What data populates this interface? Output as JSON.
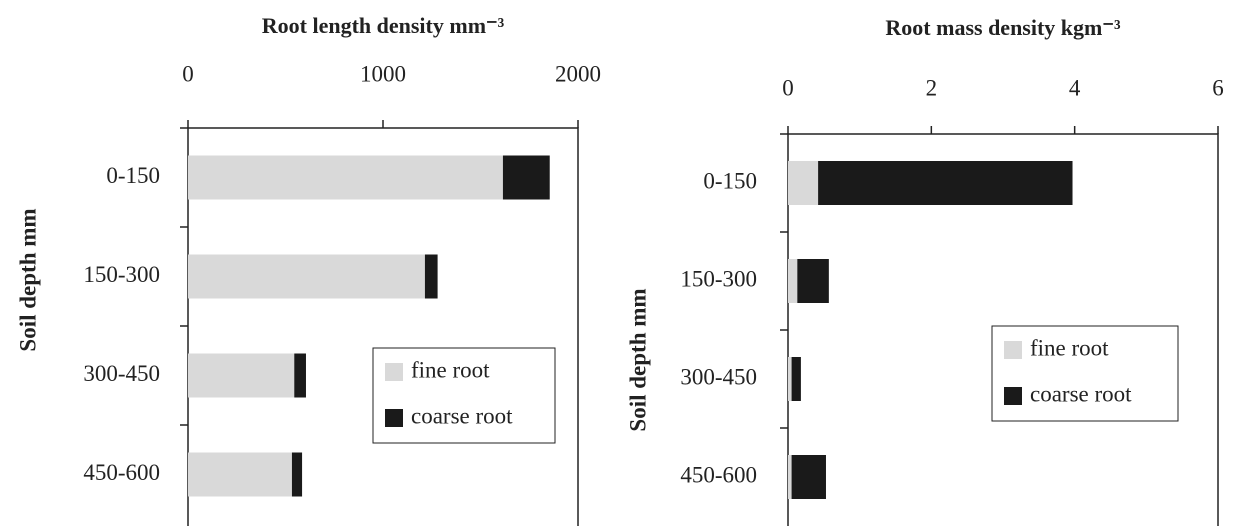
{
  "chart_data": [
    {
      "type": "bar",
      "stacked": true,
      "orientation": "horizontal",
      "title": "Root length density mm⁻³",
      "y_label": "Soil depth mm",
      "categories": [
        "0-150",
        "150-300",
        "300-450",
        "450-600"
      ],
      "series": [
        {
          "name": "fine root",
          "color": "#d9d9d9",
          "values": [
            1615,
            1215,
            545,
            533
          ]
        },
        {
          "name": "coarse root",
          "color": "#1a1a1a",
          "values": [
            240,
            65,
            60,
            52
          ]
        }
      ],
      "xlim": [
        0,
        2000
      ],
      "xticks": [
        0,
        1000,
        2000
      ],
      "legend": "lower right"
    },
    {
      "type": "bar",
      "stacked": true,
      "orientation": "horizontal",
      "title": "Root mass density kgm⁻³",
      "y_label": "Soil depth mm",
      "categories": [
        "0-150",
        "150-300",
        "300-450",
        "450-600"
      ],
      "series": [
        {
          "name": "fine root",
          "color": "#d9d9d9",
          "values": [
            0.42,
            0.13,
            0.05,
            0.05
          ]
        },
        {
          "name": "coarse root",
          "color": "#1a1a1a",
          "values": [
            3.55,
            0.44,
            0.13,
            0.48
          ]
        }
      ],
      "xlim": [
        0,
        6
      ],
      "xticks": [
        0,
        2,
        4,
        6
      ],
      "legend": "center right"
    }
  ]
}
